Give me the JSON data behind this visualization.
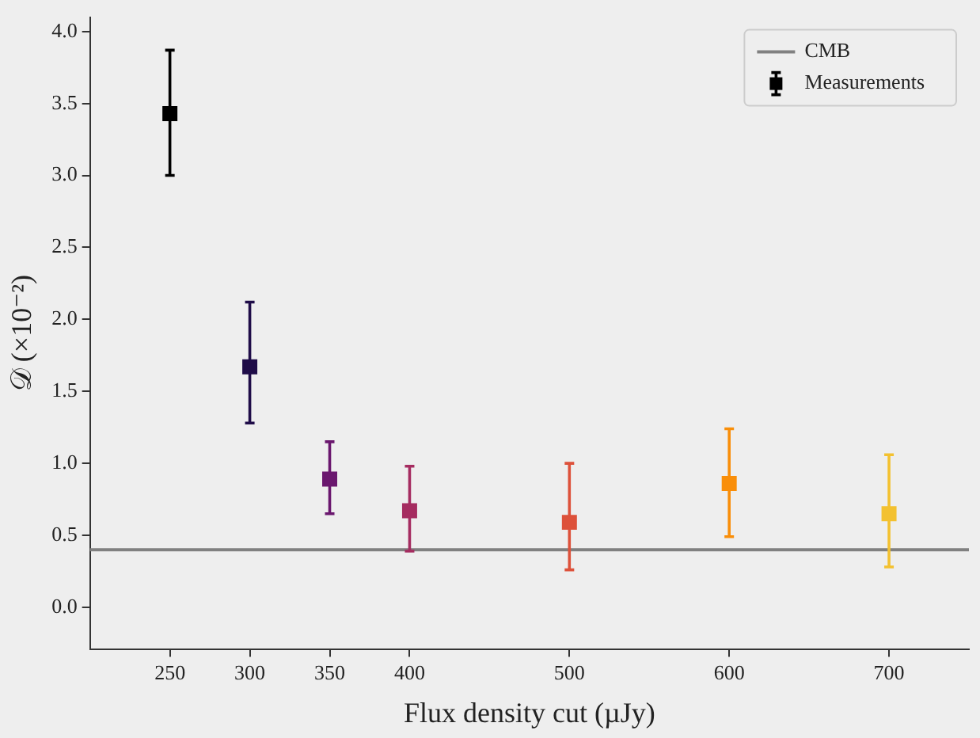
{
  "chart_data": {
    "type": "scatter",
    "xlabel": "Flux density cut (µJy)",
    "ylabel": "𝒟 (×10⁻²)",
    "x": [
      250,
      300,
      350,
      400,
      500,
      600,
      700
    ],
    "series": [
      {
        "name": "Measurements",
        "color": "#000000",
        "colors": [
          "#000000",
          "#1f0c48",
          "#6a176e",
          "#a52c60",
          "#dd513a",
          "#f98e09",
          "#f3c130"
        ],
        "values": [
          3.43,
          1.67,
          0.89,
          0.67,
          0.59,
          0.86,
          0.65
        ],
        "errors": [
          [
            3.0,
            3.87
          ],
          [
            1.28,
            2.12
          ],
          [
            0.65,
            1.15
          ],
          [
            0.39,
            0.98
          ],
          [
            0.26,
            1.0
          ],
          [
            0.49,
            1.24
          ],
          [
            0.28,
            1.06
          ]
        ]
      }
    ],
    "ref_lines": [
      {
        "axis": "y",
        "value": 0.4,
        "label": "CMB",
        "color": "#808080"
      }
    ],
    "xlim": [
      200,
      750
    ],
    "xticks": [
      250,
      300,
      350,
      400,
      500,
      600,
      700
    ],
    "ylim": [
      -0.29,
      4.1
    ],
    "yticks": [
      {
        "value": 0,
        "label": "0.0"
      },
      0.5,
      {
        "value": 1,
        "label": "1.0"
      },
      1.5,
      {
        "value": 2,
        "label": "2.0"
      },
      2.5,
      {
        "value": 3,
        "label": "3.0"
      },
      3.5,
      {
        "value": 4,
        "label": "4.0"
      }
    ],
    "marker": "square",
    "grid": false,
    "legend": "top right"
  }
}
